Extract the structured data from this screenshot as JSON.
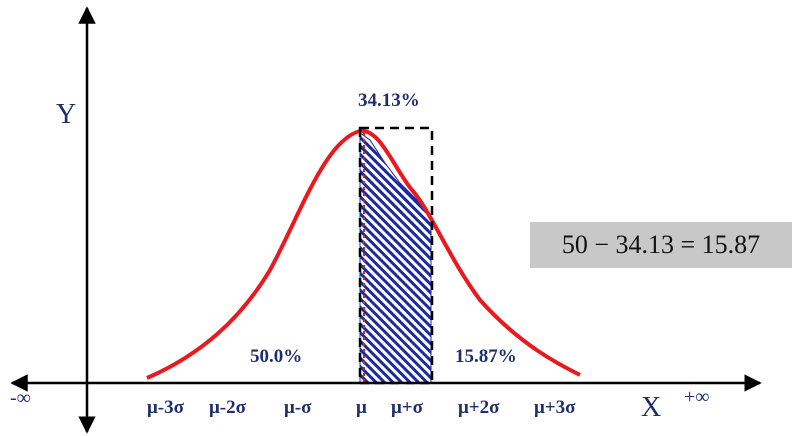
{
  "axes": {
    "y_label": "Y",
    "x_label": "X",
    "neg_inf": "-∞",
    "pos_inf": "+∞"
  },
  "ticks": [
    "μ-3σ",
    "μ-2σ",
    "μ-σ",
    "μ",
    "μ+σ",
    "μ+2σ",
    "μ+3σ"
  ],
  "annotations": {
    "area_mu_to_sigma": "34.13%",
    "left_half": "50.0%",
    "right_tail": "15.87%"
  },
  "equation": "50 − 34.13 = 15.87",
  "colors": {
    "curve": "#e8191f",
    "text": "#1f2f6e",
    "hatch": "#1c2a9b",
    "box": "#000000",
    "equation_bg": "#c8c8c8"
  }
}
